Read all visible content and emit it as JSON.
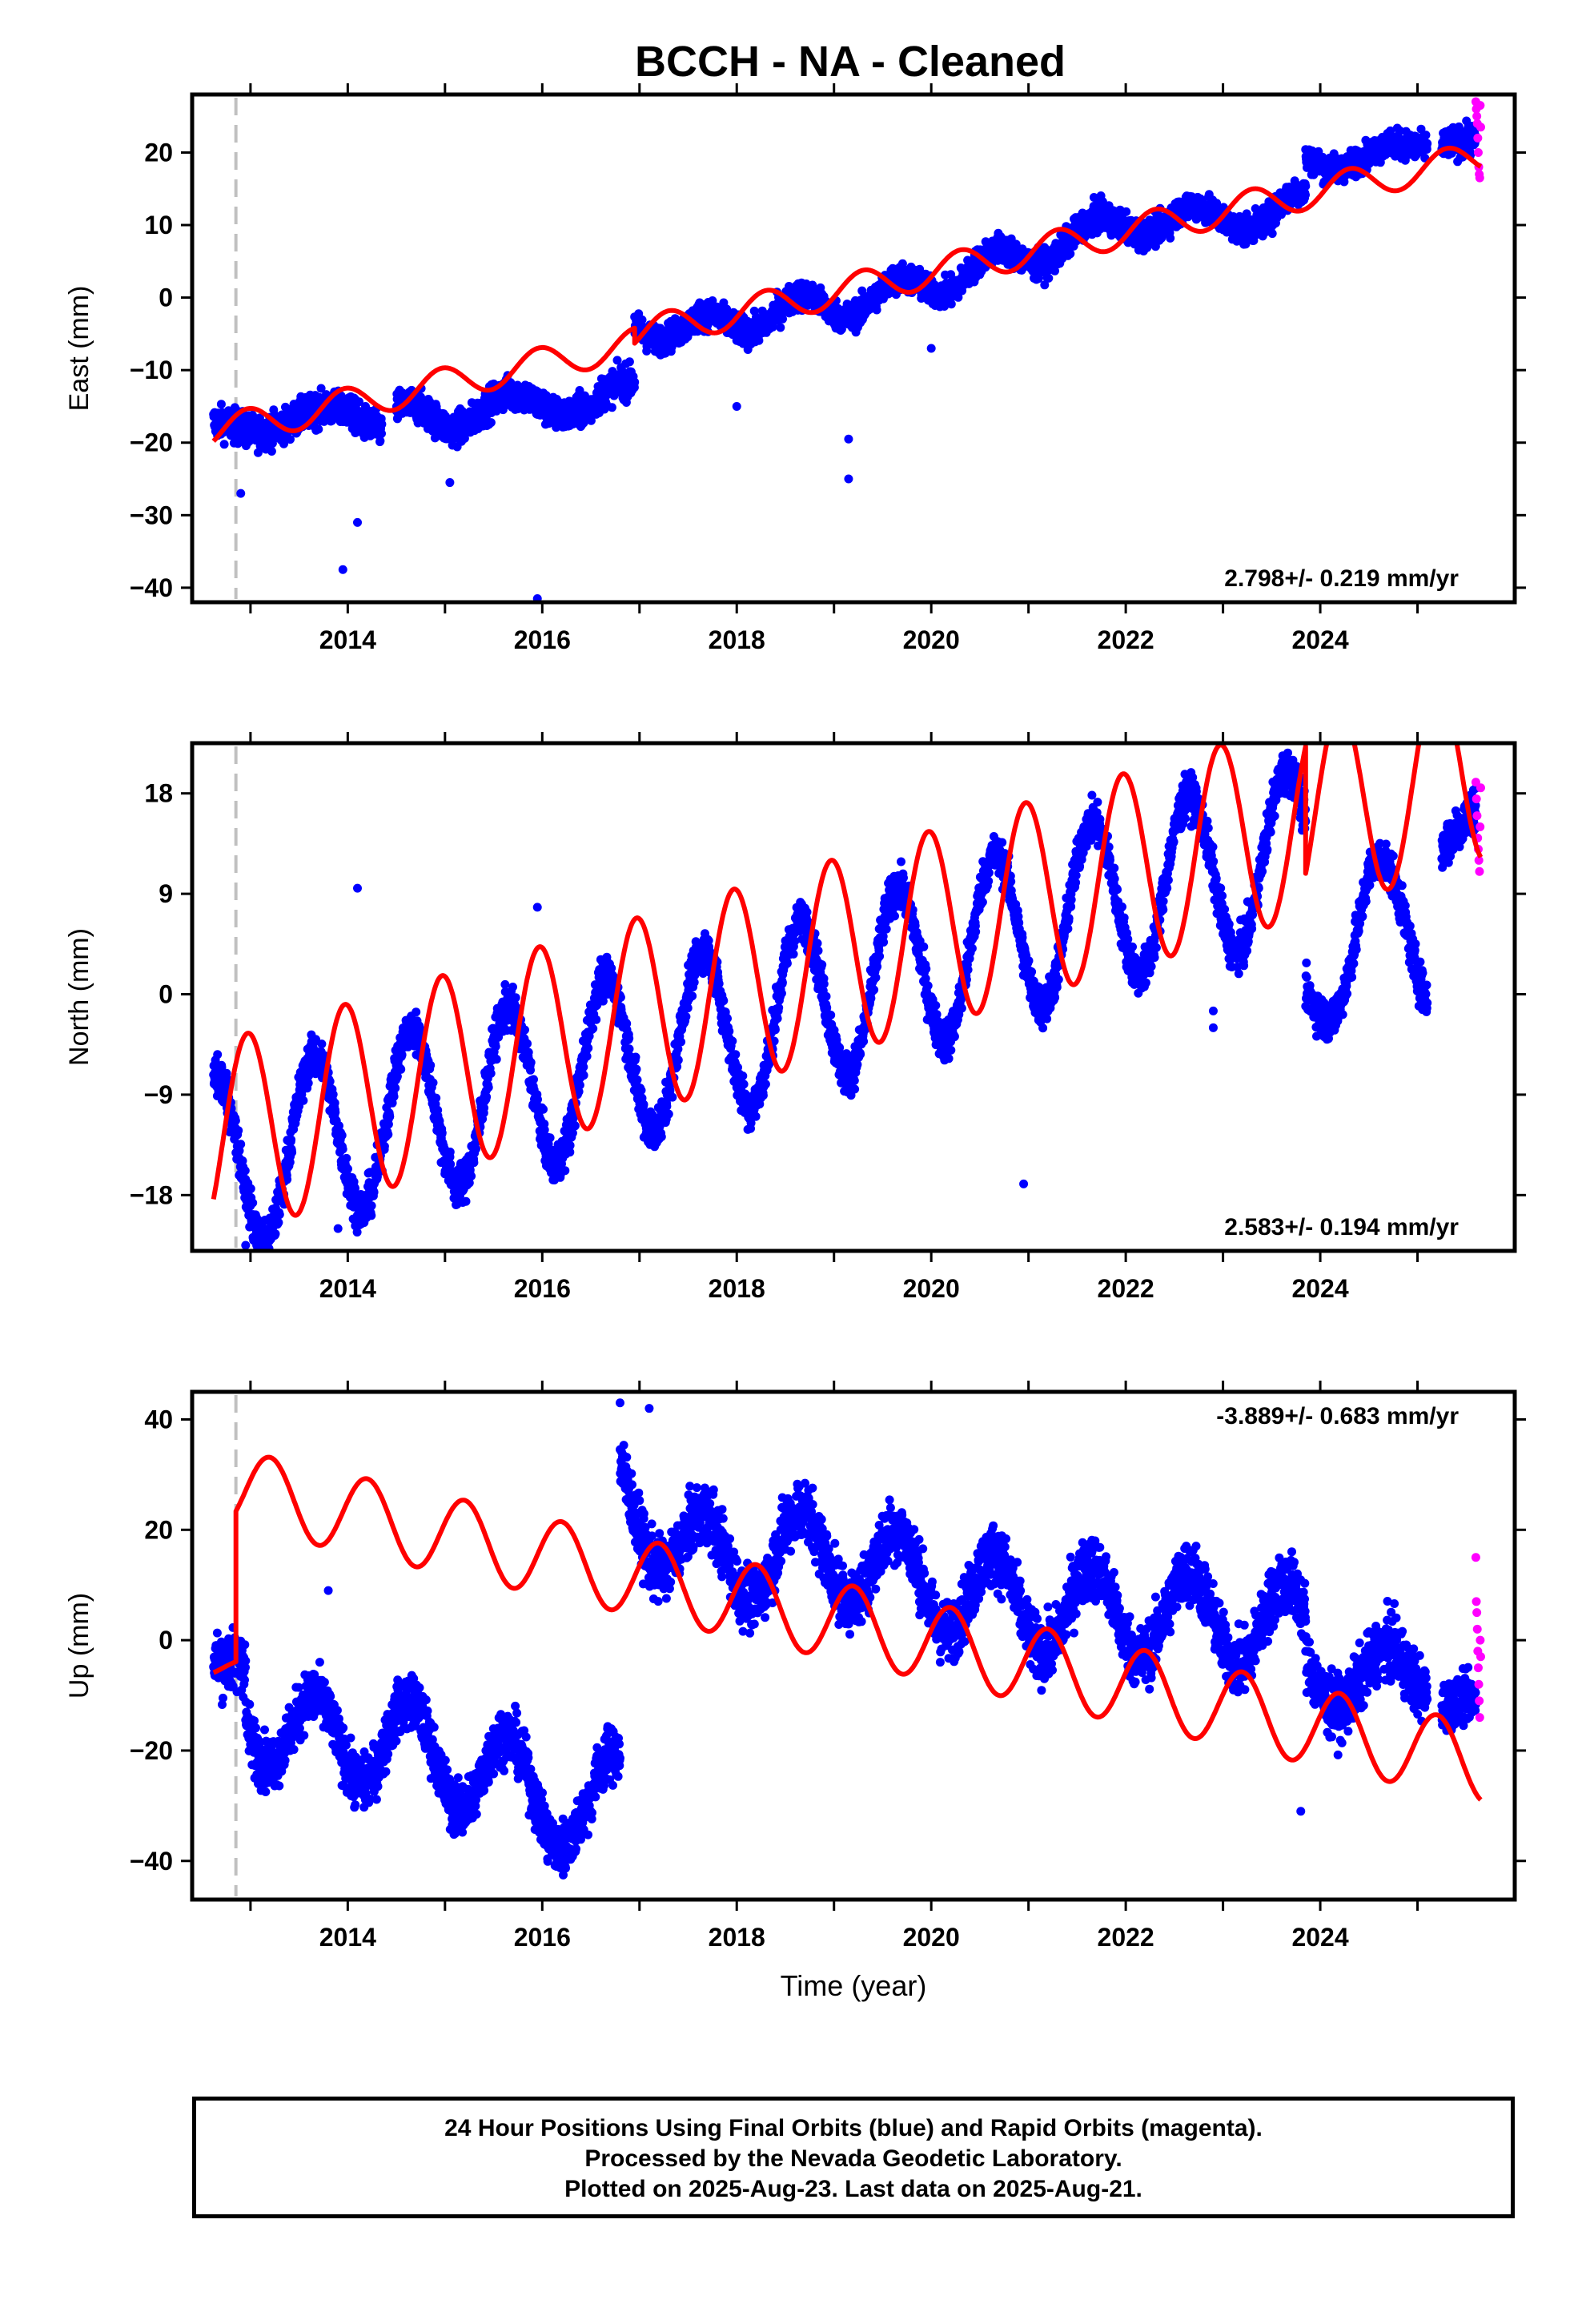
{
  "title": "BCCH  - NA - Cleaned",
  "footer": {
    "line1": "24 Hour Positions Using Final Orbits (blue) and Rapid Orbits (magenta).",
    "line2": "Processed by the Nevada Geodetic Laboratory.",
    "line3": "Plotted on 2025-Aug-23. Last data on 2025-Aug-21."
  },
  "colors": {
    "final": "#0000ff",
    "rapid": "#ff00ff",
    "model": "#ff0000",
    "marker": "#c0c0c0"
  },
  "chart_data": [
    {
      "type": "scatter",
      "ylabel": "East (mm)",
      "rate_label": "2.798+/- 0.219 mm/yr",
      "xlim": [
        2012.4,
        2026.0
      ],
      "ylim": [
        -42,
        28
      ],
      "yticks": [
        -40,
        -30,
        -20,
        -10,
        0,
        10,
        20
      ],
      "xticks": [
        2014,
        2016,
        2018,
        2020,
        2022,
        2024
      ],
      "marker_year": 2012.85,
      "final_data": {
        "segments": [
          {
            "x0": 2012.62,
            "x1": 2014.35,
            "anchors": [
              [
                2012.62,
                -18
              ],
              [
                2013.0,
                -18
              ],
              [
                2013.5,
                -17
              ],
              [
                2014.0,
                -15
              ],
              [
                2014.35,
                -18
              ]
            ],
            "amp": 0.8,
            "noise": 1.6
          },
          {
            "x0": 2014.5,
            "x1": 2016.95,
            "anchors": [
              [
                2014.5,
                -16
              ],
              [
                2015.0,
                -17
              ],
              [
                2015.5,
                -15
              ],
              [
                2016.0,
                -14
              ],
              [
                2016.5,
                -16
              ],
              [
                2016.95,
                -11
              ]
            ],
            "amp": 1.5,
            "noise": 1.6
          },
          {
            "x0": 2016.95,
            "x1": 2023.85,
            "anchors": [
              [
                2016.95,
                -3
              ],
              [
                2017.5,
                -5
              ],
              [
                2018.0,
                -3
              ],
              [
                2018.5,
                -2
              ],
              [
                2019.0,
                -1
              ],
              [
                2019.5,
                0
              ],
              [
                2020.0,
                2
              ],
              [
                2020.5,
                4
              ],
              [
                2021.0,
                6
              ],
              [
                2021.5,
                8
              ],
              [
                2022.0,
                11
              ],
              [
                2022.5,
                10
              ],
              [
                2023.0,
                12
              ],
              [
                2023.5,
                10
              ],
              [
                2023.85,
                14
              ]
            ],
            "amp": 2.0,
            "noise": 1.4
          },
          {
            "x0": 2023.85,
            "x1": 2025.1,
            "anchors": [
              [
                2023.85,
                19
              ],
              [
                2024.5,
                19
              ],
              [
                2025.1,
                22
              ]
            ],
            "amp": 1.2,
            "noise": 1.3
          },
          {
            "x0": 2025.25,
            "x1": 2025.6,
            "anchors": [
              [
                2025.25,
                21
              ],
              [
                2025.6,
                22
              ]
            ],
            "amp": 0,
            "noise": 1.5
          }
        ],
        "outliers": [
          [
            2013.95,
            -37.5
          ],
          [
            2014.1,
            -31
          ],
          [
            2015.95,
            -41.5
          ],
          [
            2018.0,
            -15
          ],
          [
            2019.15,
            -19.5
          ],
          [
            2019.15,
            -25
          ],
          [
            2015.05,
            -25.5
          ],
          [
            2012.9,
            -27
          ],
          [
            2020.0,
            -7
          ]
        ]
      },
      "rapid_data": {
        "x0": 2025.6,
        "x1": 2025.65,
        "y": [
          27,
          26,
          25,
          24,
          22,
          20,
          18,
          17,
          16.5,
          26.5,
          23.5
        ]
      },
      "model": {
        "segments": [
          {
            "x0": 2012.62,
            "x1": 2016.95,
            "y0": -18.5,
            "rate": 2.798,
            "amp": 2.2
          },
          {
            "x0": 2016.95,
            "x1": 2025.65,
            "y0": -5.0,
            "rate": 2.798,
            "amp": 2.2
          }
        ]
      }
    },
    {
      "type": "scatter",
      "ylabel": "North (mm)",
      "rate_label": "2.583+/- 0.194 mm/yr",
      "xlim": [
        2012.4,
        2026.0
      ],
      "ylim": [
        -23,
        22.5
      ],
      "yticks": [
        -18,
        -9,
        0,
        9,
        18
      ],
      "xticks": [
        2014,
        2016,
        2018,
        2020,
        2022,
        2024
      ],
      "marker_year": 2012.85,
      "final_data": {
        "segments": [
          {
            "x0": 2012.62,
            "x1": 2023.85,
            "anchors": [
              [
                2012.62,
                -15
              ],
              [
                2013.0,
                -15
              ],
              [
                2014.0,
                -12
              ],
              [
                2015.0,
                -10
              ],
              [
                2016.0,
                -8
              ],
              [
                2017.0,
                -5
              ],
              [
                2018.0,
                -3
              ],
              [
                2019.0,
                0
              ],
              [
                2020.0,
                3
              ],
              [
                2021.0,
                6
              ],
              [
                2022.0,
                9
              ],
              [
                2023.0,
                11
              ],
              [
                2023.85,
                13
              ]
            ],
            "amp": 7.5,
            "noise": 1.3
          },
          {
            "x0": 2023.85,
            "x1": 2025.1,
            "anchors": [
              [
                2023.85,
                -1
              ],
              [
                2024.5,
                8
              ],
              [
                2025.1,
                4
              ]
            ],
            "amp": 5.0,
            "noise": 1.3
          },
          {
            "x0": 2025.25,
            "x1": 2025.6,
            "anchors": [
              [
                2025.25,
                13
              ],
              [
                2025.6,
                17
              ]
            ],
            "amp": 0,
            "noise": 1.5
          }
        ],
        "outliers": [
          [
            2014.1,
            9.5
          ],
          [
            2015.95,
            7.8
          ],
          [
            2020.95,
            -17
          ],
          [
            2012.95,
            -22.5
          ],
          [
            2022.9,
            -3
          ],
          [
            2022.9,
            -1.5
          ],
          [
            2013.9,
            -21
          ]
        ]
      },
      "rapid_data": {
        "x0": 2025.6,
        "x1": 2025.65,
        "y": [
          19,
          17.5,
          16,
          14,
          13,
          12,
          11,
          15,
          18.5
        ]
      },
      "model": {
        "segments": [
          {
            "x0": 2012.62,
            "x1": 2023.85,
            "y0": -13.2,
            "rate": 2.583,
            "amp": 8.8
          },
          {
            "x0": 2023.85,
            "x1": 2025.65,
            "y0": 16.0,
            "rate": 2.583,
            "amp": 8.8
          }
        ]
      }
    },
    {
      "type": "scatter",
      "ylabel": "Up (mm)",
      "rate_label": "-3.889+/- 0.683 mm/yr",
      "xlabel": "Time (year)",
      "xlim": [
        2012.4,
        2026.0
      ],
      "ylim": [
        -47,
        45
      ],
      "yticks": [
        -40,
        -20,
        0,
        20,
        40
      ],
      "xticks": [
        2014,
        2016,
        2018,
        2020,
        2022,
        2024
      ],
      "marker_year": 2012.85,
      "final_data": {
        "segments": [
          {
            "x0": 2012.62,
            "x1": 2012.95,
            "anchors": [
              [
                2012.62,
                -4
              ],
              [
                2012.95,
                -4
              ]
            ],
            "amp": 0,
            "noise": 4
          },
          {
            "x0": 2012.95,
            "x1": 2016.8,
            "anchors": [
              [
                2012.95,
                -12
              ],
              [
                2013.5,
                -18
              ],
              [
                2014.0,
                -18
              ],
              [
                2014.5,
                -18
              ],
              [
                2015.0,
                -22
              ],
              [
                2015.5,
                -24
              ],
              [
                2016.0,
                -28
              ],
              [
                2016.5,
                -33
              ],
              [
                2016.8,
                -26
              ]
            ],
            "amp": 8,
            "noise": 3.5
          },
          {
            "x0": 2016.8,
            "x1": 2023.85,
            "anchors": [
              [
                2016.8,
                28
              ],
              [
                2017.5,
                15
              ],
              [
                2018.0,
                15
              ],
              [
                2019.0,
                16
              ],
              [
                2020.0,
                10
              ],
              [
                2021.0,
                6
              ],
              [
                2022.0,
                5
              ],
              [
                2023.0,
                4
              ],
              [
                2023.85,
                2
              ]
            ],
            "amp": 8,
            "noise": 4
          },
          {
            "x0": 2023.85,
            "x1": 2025.1,
            "anchors": [
              [
                2023.85,
                -5
              ],
              [
                2024.5,
                -8
              ],
              [
                2025.1,
                -4
              ]
            ],
            "amp": 6,
            "noise": 4
          },
          {
            "x0": 2025.25,
            "x1": 2025.6,
            "anchors": [
              [
                2025.25,
                -12
              ],
              [
                2025.6,
                -10
              ]
            ],
            "amp": 0,
            "noise": 3
          }
        ],
        "outliers": [
          [
            2016.8,
            43
          ],
          [
            2017.1,
            42
          ],
          [
            2023.8,
            -31
          ],
          [
            2013.8,
            9
          ]
        ]
      },
      "rapid_data": {
        "x0": 2025.6,
        "x1": 2025.65,
        "y": [
          15,
          7,
          5,
          2,
          -2,
          -5,
          -8,
          -11,
          -14,
          0,
          -3
        ]
      },
      "model": {
        "segments": [
          {
            "x0": 2012.62,
            "x1": 2012.85,
            "y0": -5.0,
            "rate": 0,
            "amp": 1.5
          },
          {
            "x0": 2012.85,
            "x1": 2025.65,
            "y0": 27.5,
            "rate": -3.889,
            "amp": 7.0
          }
        ]
      }
    }
  ]
}
